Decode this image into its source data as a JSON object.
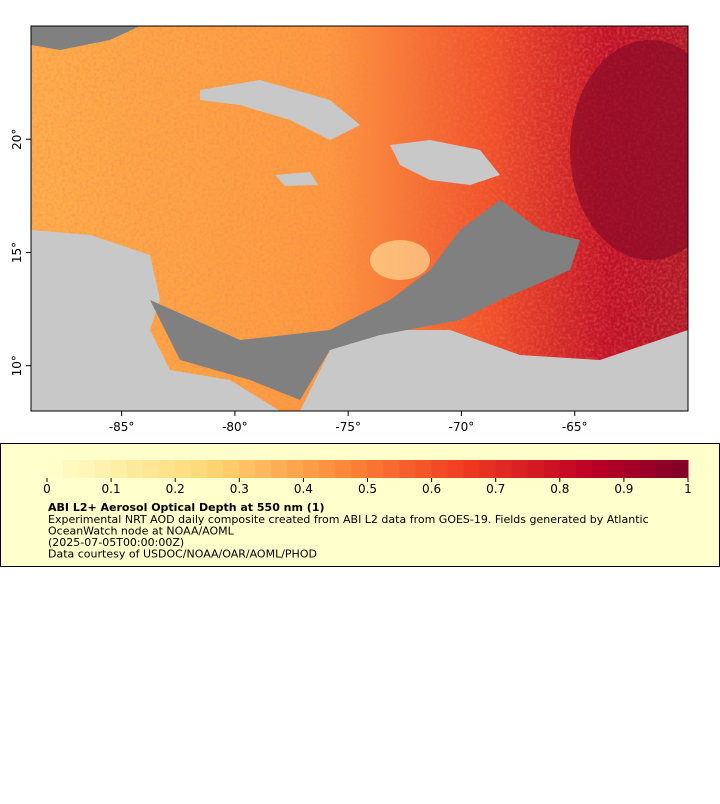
{
  "map": {
    "xlim": [
      -89,
      -60
    ],
    "ylim": [
      8,
      25
    ],
    "xticks": [
      {
        "value": -85,
        "label": "-85°"
      },
      {
        "value": -80,
        "label": "-80°"
      },
      {
        "value": -75,
        "label": "-75°"
      },
      {
        "value": -70,
        "label": "-70°"
      },
      {
        "value": -65,
        "label": "-65°"
      }
    ],
    "yticks": [
      {
        "value": 10,
        "label": "10°"
      },
      {
        "value": 15,
        "label": "15°"
      },
      {
        "value": 20,
        "label": "20°"
      }
    ]
  },
  "colorbar": {
    "clim": [
      0,
      1
    ],
    "ticks": [
      0,
      0.1,
      0.2,
      0.3,
      0.4,
      0.5,
      0.6,
      0.7,
      0.8,
      0.9,
      1
    ]
  },
  "caption": {
    "title": "ABI L2+ Aerosol Optical Depth at 550 nm (1)",
    "lines": [
      "Experimental NRT AOD daily composite created from ABI L2 data from GOES-19. Fields generated by Atlantic",
      "OceanWatch node at NOAA/AOML",
      "(2025-07-05T00:00:00Z)",
      "Data courtesy of USDOC/NOAA/OAR/AOML/PHOD"
    ]
  }
}
